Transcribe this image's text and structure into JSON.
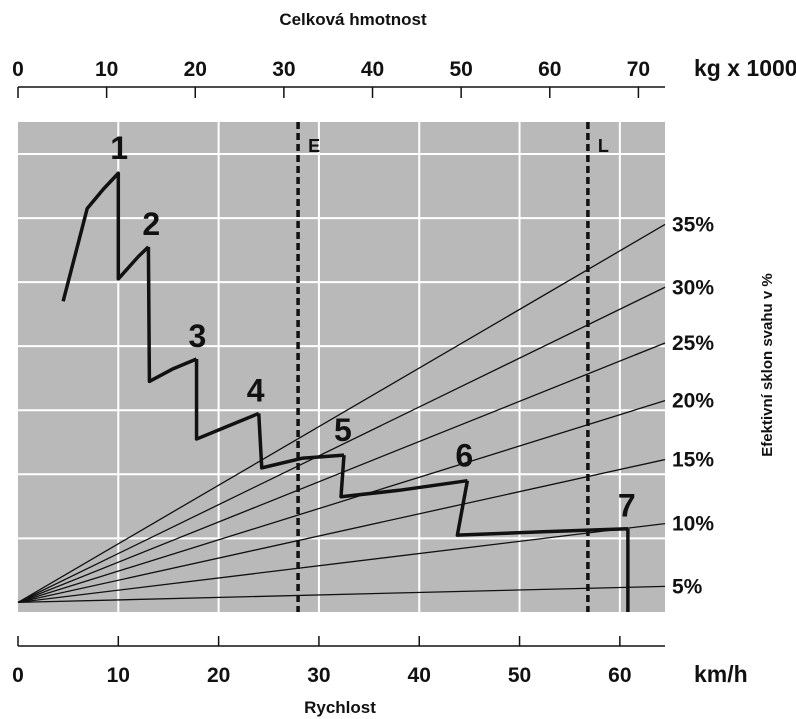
{
  "chart_data": {
    "type": "line",
    "top_axis": {
      "title": "Celková hmotnost",
      "unit": "kg x 1000",
      "ticks": [
        "0",
        "10",
        "20",
        "30",
        "40",
        "50",
        "60",
        "70"
      ],
      "range": [
        0,
        73
      ]
    },
    "bottom_axis": {
      "title": "Rychlost",
      "unit": "km/h",
      "ticks": [
        "0",
        "10",
        "20",
        "30",
        "40",
        "50",
        "60"
      ],
      "range": [
        0,
        64.5
      ]
    },
    "right_axis": {
      "title": "Efektivní sklon svahu v %",
      "slope_lines": [
        {
          "label": "5%",
          "at_x_max": 0.25
        },
        {
          "label": "10%",
          "at_x_max": 1.23
        },
        {
          "label": "15%",
          "at_x_max": 2.23
        },
        {
          "label": "20%",
          "at_x_max": 3.15
        },
        {
          "label": "25%",
          "at_x_max": 4.05
        },
        {
          "label": "30%",
          "at_x_max": 4.92
        },
        {
          "label": "35%",
          "at_x_max": 5.9
        }
      ]
    },
    "y_range": [
      -0.15,
      7.5
    ],
    "markers": [
      {
        "label": "E",
        "top_value": 31.6
      },
      {
        "label": "L",
        "top_value": 64.3
      }
    ],
    "gears": [
      {
        "label": "1",
        "points": [
          [
            4.5,
            4.7
          ],
          [
            6.9,
            6.15
          ],
          [
            8.5,
            6.45
          ],
          [
            10.0,
            6.7
          ],
          [
            10.0,
            5.05
          ],
          [
            12.0,
            5.4
          ],
          [
            13.0,
            5.55
          ]
        ]
      },
      {
        "label": "2",
        "points": [
          [
            13.0,
            5.55
          ],
          [
            13.1,
            3.45
          ],
          [
            15.5,
            3.65
          ],
          [
            17.8,
            3.8
          ]
        ]
      },
      {
        "label": "3",
        "points": [
          [
            17.8,
            3.8
          ],
          [
            17.8,
            2.55
          ],
          [
            20.9,
            2.75
          ],
          [
            24.0,
            2.95
          ]
        ]
      },
      {
        "label": "4",
        "points": [
          [
            24.0,
            2.95
          ],
          [
            24.3,
            2.1
          ],
          [
            28.3,
            2.25
          ],
          [
            32.5,
            2.3
          ]
        ]
      },
      {
        "label": "5",
        "points": [
          [
            32.5,
            2.3
          ],
          [
            32.2,
            1.65
          ],
          [
            38.0,
            1.75
          ],
          [
            44.8,
            1.9
          ]
        ]
      },
      {
        "label": "6",
        "points": [
          [
            44.8,
            1.9
          ],
          [
            43.8,
            1.05
          ],
          [
            52.0,
            1.1
          ],
          [
            60.8,
            1.15
          ]
        ]
      },
      {
        "label": "7",
        "points": [
          [
            60.8,
            1.15
          ],
          [
            60.8,
            -0.15
          ]
        ]
      }
    ],
    "grid": true
  }
}
